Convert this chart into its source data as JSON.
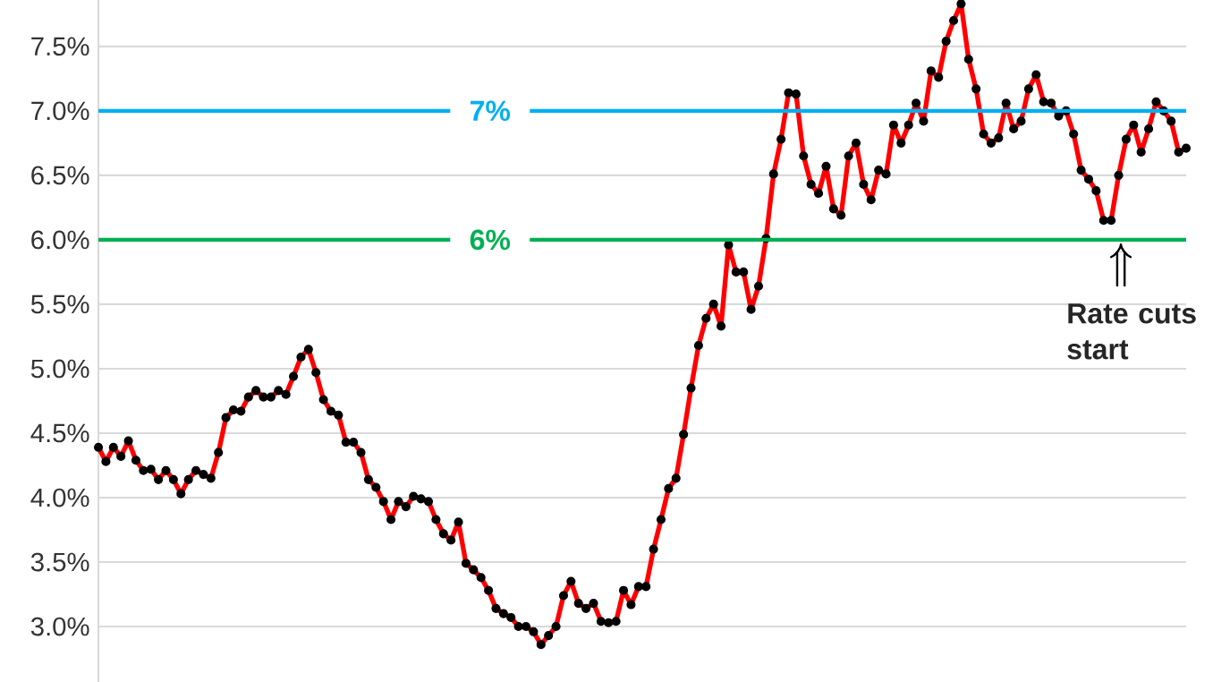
{
  "chart_data": {
    "type": "line",
    "categories": [
      null,
      null,
      null,
      null,
      null,
      null,
      null,
      null,
      null,
      null,
      null,
      null,
      null,
      null,
      null,
      null,
      null,
      null,
      null,
      null,
      null,
      null,
      null,
      null,
      null,
      null,
      null,
      null,
      null,
      null,
      null,
      null,
      null,
      null,
      null,
      null,
      null,
      null,
      null,
      null,
      null,
      null,
      null,
      null,
      null,
      null,
      null,
      null,
      null,
      null,
      null,
      null,
      null,
      null,
      null,
      null,
      null,
      null,
      null,
      null,
      null,
      null,
      null,
      null,
      null,
      null,
      null,
      null,
      null,
      null,
      null,
      null,
      null,
      null,
      null,
      null,
      null,
      null,
      null,
      null,
      null,
      null,
      null,
      null,
      null,
      null,
      null,
      null,
      null,
      null,
      null,
      null,
      null,
      null,
      null,
      null,
      null,
      null,
      null,
      null,
      null,
      null,
      null,
      null,
      null,
      null,
      null,
      null,
      null,
      null,
      null,
      null,
      null,
      null,
      null,
      null,
      null,
      null,
      null,
      null,
      null,
      null,
      null,
      null,
      null,
      null,
      null,
      null,
      null,
      null,
      null,
      null,
      null,
      null,
      null,
      null,
      null,
      null,
      null,
      null,
      null,
      null,
      null,
      null,
      null,
      null
    ],
    "series": [
      {
        "color": "#ff0000",
        "values": [
          4.39,
          4.28,
          4.39,
          4.32,
          4.44,
          4.29,
          4.21,
          4.22,
          4.14,
          4.21,
          4.14,
          4.03,
          4.14,
          4.21,
          4.18,
          4.15,
          4.35,
          4.62,
          4.68,
          4.67,
          4.78,
          4.83,
          4.78,
          4.78,
          4.83,
          4.8,
          4.94,
          5.09,
          5.15,
          4.97,
          4.76,
          4.67,
          4.64,
          4.43,
          4.43,
          4.35,
          4.14,
          4.08,
          3.97,
          3.83,
          3.97,
          3.93,
          4.01,
          3.99,
          3.97,
          3.83,
          3.72,
          3.67,
          3.81,
          3.49,
          3.44,
          3.38,
          3.28,
          3.14,
          3.1,
          3.07,
          3.0,
          3.0,
          2.96,
          2.86,
          2.93,
          3.0,
          3.24,
          3.35,
          3.18,
          3.14,
          3.18,
          3.04,
          3.03,
          3.04,
          3.28,
          3.17,
          3.31,
          3.31,
          3.6,
          3.83,
          4.07,
          4.15,
          4.49,
          4.85,
          5.18,
          5.39,
          5.5,
          5.33,
          5.96,
          5.75,
          5.75,
          5.46,
          5.64,
          6.01,
          6.51,
          6.78,
          7.14,
          7.13,
          6.65,
          6.43,
          6.36,
          6.57,
          6.24,
          6.19,
          6.65,
          6.75,
          6.43,
          6.31,
          6.54,
          6.51,
          6.89,
          6.75,
          6.89,
          7.06,
          6.92,
          7.31,
          7.26,
          7.54,
          7.7,
          7.83,
          7.4,
          7.17,
          6.82,
          6.75,
          6.79,
          7.06,
          6.86,
          6.92,
          7.17,
          7.28,
          7.07,
          7.06,
          6.96,
          7.0,
          6.82,
          6.54,
          6.47,
          6.38,
          6.15,
          6.15,
          6.5,
          6.78,
          6.89,
          6.68,
          6.86,
          7.07,
          7.0,
          6.92,
          6.68,
          6.71
        ]
      }
    ],
    "ylim": [
      2.57,
      7.86
    ],
    "yticks": [
      {
        "value": 3.0,
        "label": "3.0%"
      },
      {
        "value": 3.5,
        "label": "3.5%"
      },
      {
        "value": 4.0,
        "label": "4.0%"
      },
      {
        "value": 4.5,
        "label": "4.5%"
      },
      {
        "value": 5.0,
        "label": "5.0%"
      },
      {
        "value": 5.5,
        "label": "5.5%"
      },
      {
        "value": 6.0,
        "label": "6.0%"
      },
      {
        "value": 6.5,
        "label": "6.5%"
      },
      {
        "value": 7.0,
        "label": "7.0%"
      },
      {
        "value": 7.5,
        "label": "7.5%"
      }
    ],
    "tick_labels": "y",
    "grid": "y",
    "marker": "circle",
    "line_style": "solid",
    "ref_lines": [
      {
        "axis": "y",
        "value": 7,
        "label": "7%",
        "color": "#00b0f0"
      },
      {
        "axis": "y",
        "value": 6,
        "label": "6%",
        "color": "#00b050"
      }
    ],
    "annotations": [
      "Rate cuts start"
    ]
  }
}
